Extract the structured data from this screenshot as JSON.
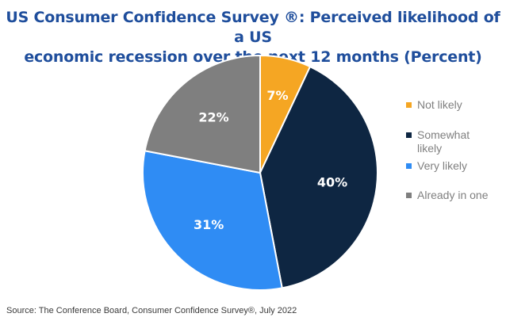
{
  "chart_data": {
    "type": "pie",
    "title_lines": [
      "US Consumer Confidence Survey ®: Perceived likelihood of a US",
      "economic recession over the next 12 months (Percent)"
    ],
    "categories": [
      "Not likely",
      "Somewhat likely",
      "Very likely",
      "Already in one"
    ],
    "values": [
      7,
      40,
      31,
      22
    ],
    "labels": [
      "7%",
      "40%",
      "31%",
      "22%"
    ],
    "colors": [
      "#f5a623",
      "#0e2642",
      "#2f8cf4",
      "#7f7f7f"
    ],
    "start": "12 o'clock",
    "direction": "clockwise",
    "legend_position": "right"
  },
  "source": "Source: The Conference Board, Consumer Confidence Survey®, July 2022"
}
